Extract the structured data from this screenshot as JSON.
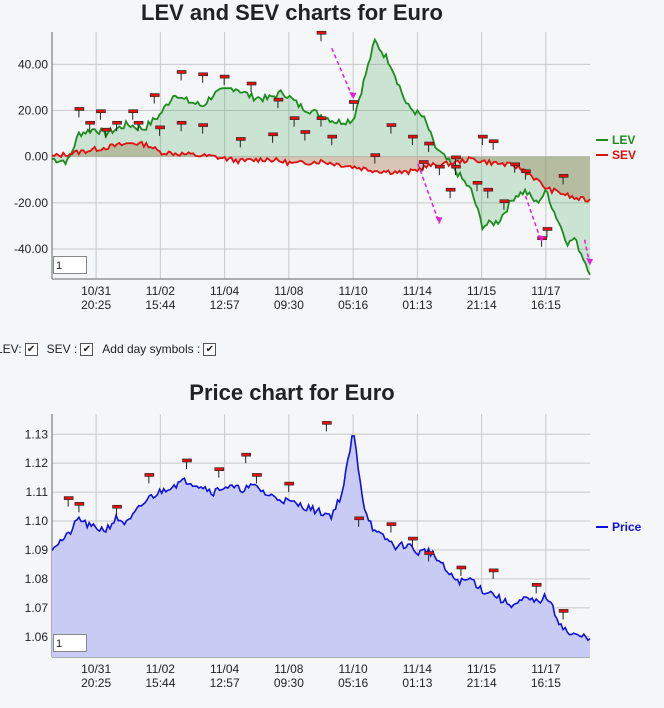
{
  "chart_data": [
    {
      "type": "line",
      "title": "LEV and SEV charts for Euro",
      "x_labels": [
        [
          "10/31",
          "20:25"
        ],
        [
          "11/02",
          "15:44"
        ],
        [
          "11/04",
          "12:57"
        ],
        [
          "11/08",
          "09:30"
        ],
        [
          "11/10",
          "05:16"
        ],
        [
          "11/14",
          "01:13"
        ],
        [
          "11/15",
          "21:14"
        ],
        [
          "11/17",
          "16:15"
        ]
      ],
      "y_ticks": [
        "40.00",
        "20.00",
        "0.00",
        "-20.00",
        "-40.00"
      ],
      "ylim": [
        -53,
        54
      ],
      "grid": true,
      "legend_position": "right",
      "zoom_value": "1",
      "series": [
        {
          "name": "LEV",
          "color": "#1e8c1e",
          "x": [
            0,
            3,
            5,
            8,
            10,
            14,
            17,
            20,
            23,
            24,
            28,
            30,
            34,
            37,
            40,
            43,
            46,
            50,
            53,
            56,
            60,
            63,
            66,
            69,
            70,
            71,
            72,
            74,
            78,
            80,
            83,
            86,
            88,
            90,
            92,
            93,
            96,
            97,
            100
          ],
          "values": [
            -1,
            -2,
            10,
            12,
            10,
            14,
            12,
            18,
            28,
            25,
            22,
            27,
            30,
            26,
            25,
            28,
            22,
            18,
            15,
            16,
            50,
            40,
            22,
            17,
            12,
            5,
            2,
            -3,
            -15,
            -30,
            -28,
            -17,
            -15,
            -20,
            -15,
            -22,
            -38,
            -35,
            -50
          ]
        },
        {
          "name": "SEV",
          "color": "#e01010",
          "x": [
            0,
            5,
            10,
            15,
            18,
            20,
            25,
            30,
            35,
            40,
            45,
            50,
            55,
            60,
            66,
            70,
            74,
            78,
            80,
            83,
            86,
            88,
            90,
            92,
            95,
            97,
            100
          ],
          "values": [
            0,
            2,
            4,
            6,
            5,
            2,
            1,
            0,
            -2,
            -1,
            -3,
            -2,
            -4,
            -6,
            -7,
            -4,
            -3,
            -1,
            -2,
            -3,
            -4,
            -6,
            -10,
            -14,
            -16,
            -18,
            -19
          ]
        }
      ],
      "day_markers_lev": [
        [
          5,
          17
        ],
        [
          7,
          11
        ],
        [
          9,
          16
        ],
        [
          12,
          11
        ],
        [
          15,
          16
        ],
        [
          16,
          11
        ],
        [
          19,
          23
        ],
        [
          24,
          33
        ],
        [
          28,
          32
        ],
        [
          32,
          31
        ],
        [
          37,
          28
        ],
        [
          42,
          21
        ],
        [
          45,
          13
        ],
        [
          50,
          13
        ],
        [
          50,
          50
        ],
        [
          56,
          20
        ],
        [
          63,
          10
        ],
        [
          67,
          5
        ],
        [
          70,
          2
        ],
        [
          72,
          -8
        ],
        [
          74,
          -18
        ],
        [
          75,
          -8
        ],
        [
          79,
          -15
        ],
        [
          81,
          -18
        ],
        [
          84,
          -23
        ],
        [
          91,
          -39
        ],
        [
          92,
          -35
        ]
      ],
      "day_markers_sev": [
        [
          10,
          8
        ],
        [
          20,
          9
        ],
        [
          24,
          11
        ],
        [
          28,
          10
        ],
        [
          35,
          4
        ],
        [
          41,
          6
        ],
        [
          47,
          7
        ],
        [
          52,
          5
        ],
        [
          60,
          -3
        ],
        [
          69,
          -6
        ],
        [
          75,
          -4
        ],
        [
          80,
          5
        ],
        [
          82,
          3
        ],
        [
          86,
          -7
        ],
        [
          88,
          -10
        ],
        [
          95,
          -12
        ]
      ]
    },
    {
      "type": "area",
      "title": "Price chart for Euro",
      "x_labels": [
        [
          "10/31",
          "20:25"
        ],
        [
          "11/02",
          "15:44"
        ],
        [
          "11/04",
          "12:57"
        ],
        [
          "11/08",
          "09:30"
        ],
        [
          "11/10",
          "05:16"
        ],
        [
          "11/14",
          "01:13"
        ],
        [
          "11/15",
          "21:14"
        ],
        [
          "11/17",
          "16:15"
        ]
      ],
      "y_ticks": [
        "1.13",
        "1.12",
        "1.11",
        "1.10",
        "1.09",
        "1.08",
        "1.07",
        "1.06"
      ],
      "ylim": [
        1.053,
        1.137
      ],
      "grid": true,
      "legend_position": "right",
      "zoom_value": "1",
      "series": [
        {
          "name": "Price",
          "color": "#1010e0",
          "x": [
            0,
            3,
            5,
            7,
            10,
            12,
            14,
            16,
            18,
            20,
            22,
            25,
            28,
            30,
            32,
            35,
            38,
            40,
            42,
            45,
            47,
            50,
            52,
            54,
            56,
            58,
            60,
            62,
            64,
            66,
            68,
            70,
            72,
            74,
            76,
            78,
            80,
            82,
            84,
            86,
            88,
            90,
            92,
            94,
            96,
            98,
            100
          ],
          "values": [
            1.091,
            1.095,
            1.101,
            1.098,
            1.097,
            1.101,
            1.099,
            1.104,
            1.108,
            1.11,
            1.112,
            1.114,
            1.112,
            1.11,
            1.112,
            1.111,
            1.112,
            1.109,
            1.108,
            1.106,
            1.105,
            1.103,
            1.102,
            1.11,
            1.131,
            1.105,
            1.096,
            1.094,
            1.091,
            1.092,
            1.089,
            1.09,
            1.086,
            1.081,
            1.079,
            1.08,
            1.076,
            1.075,
            1.072,
            1.071,
            1.073,
            1.072,
            1.074,
            1.066,
            1.061,
            1.06,
            1.06
          ]
        }
      ],
      "day_markers": [
        [
          3,
          1.105
        ],
        [
          5,
          1.103
        ],
        [
          12,
          1.102
        ],
        [
          18,
          1.113
        ],
        [
          25,
          1.118
        ],
        [
          31,
          1.115
        ],
        [
          36,
          1.12
        ],
        [
          38,
          1.113
        ],
        [
          44,
          1.11
        ],
        [
          51,
          1.131
        ],
        [
          57,
          1.098
        ],
        [
          63,
          1.096
        ],
        [
          67,
          1.091
        ],
        [
          70,
          1.086
        ],
        [
          76,
          1.081
        ],
        [
          82,
          1.08
        ],
        [
          90,
          1.075
        ],
        [
          95,
          1.066
        ]
      ]
    }
  ],
  "controls": {
    "lev_label": "LEV:",
    "sev_label": "SEV :",
    "day_symbols_label": "Add day symbols :",
    "check": "✔"
  }
}
